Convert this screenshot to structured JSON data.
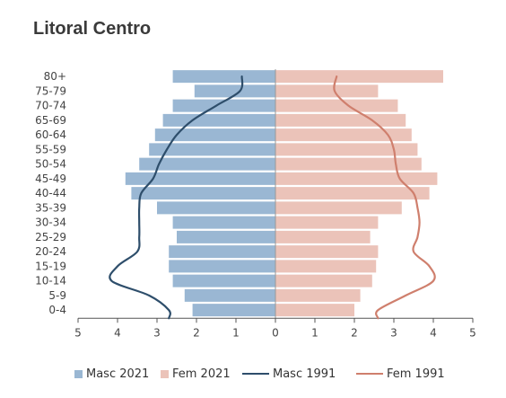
{
  "title": "Litoral Centro",
  "colors": {
    "masc_2021": "#9ab7d3",
    "fem_2021": "#ebc3b9",
    "masc_1991": "#2e4e6b",
    "fem_1991": "#cf7f6d"
  },
  "legend": {
    "masc_2021": "Masc 2021",
    "fem_2021": "Fem 2021",
    "masc_1991": "Masc 1991",
    "fem_1991": "Fem 1991"
  },
  "chart_data": {
    "type": "bar",
    "orientation": "horizontal",
    "title": "Litoral Centro",
    "categories": [
      "0-4",
      "5-9",
      "10-14",
      "15-19",
      "20-24",
      "25-29",
      "30-34",
      "35-39",
      "40-44",
      "45-49",
      "50-54",
      "55-59",
      "60-64",
      "65-69",
      "70-74",
      "75-79",
      "80+"
    ],
    "x_ticks": [
      "5",
      "4",
      "3",
      "2",
      "1",
      "0",
      "1",
      "2",
      "3",
      "4",
      "5"
    ],
    "xlim": [
      -5,
      5
    ],
    "series": [
      {
        "name": "Masc 2021",
        "kind": "bar",
        "side": "left",
        "values": [
          2.1,
          2.3,
          2.6,
          2.7,
          2.7,
          2.5,
          2.6,
          3.0,
          3.65,
          3.8,
          3.45,
          3.2,
          3.05,
          2.85,
          2.6,
          2.05,
          2.6
        ]
      },
      {
        "name": "Fem 2021",
        "kind": "bar",
        "side": "right",
        "values": [
          2.0,
          2.15,
          2.45,
          2.55,
          2.6,
          2.4,
          2.6,
          3.2,
          3.9,
          4.1,
          3.7,
          3.6,
          3.45,
          3.3,
          3.1,
          2.6,
          4.25
        ]
      },
      {
        "name": "Masc 1991",
        "kind": "line",
        "side": "left",
        "values": [
          2.7,
          3.2,
          4.15,
          4.0,
          3.5,
          3.45,
          3.45,
          3.45,
          3.4,
          3.1,
          2.95,
          2.75,
          2.5,
          2.1,
          1.5,
          0.9,
          0.85
        ]
      },
      {
        "name": "Fem 1991",
        "kind": "line",
        "side": "right",
        "values": [
          2.6,
          3.3,
          4.0,
          3.9,
          3.5,
          3.6,
          3.65,
          3.6,
          3.5,
          3.15,
          3.05,
          3.0,
          2.85,
          2.45,
          1.85,
          1.5,
          1.55
        ]
      }
    ]
  }
}
